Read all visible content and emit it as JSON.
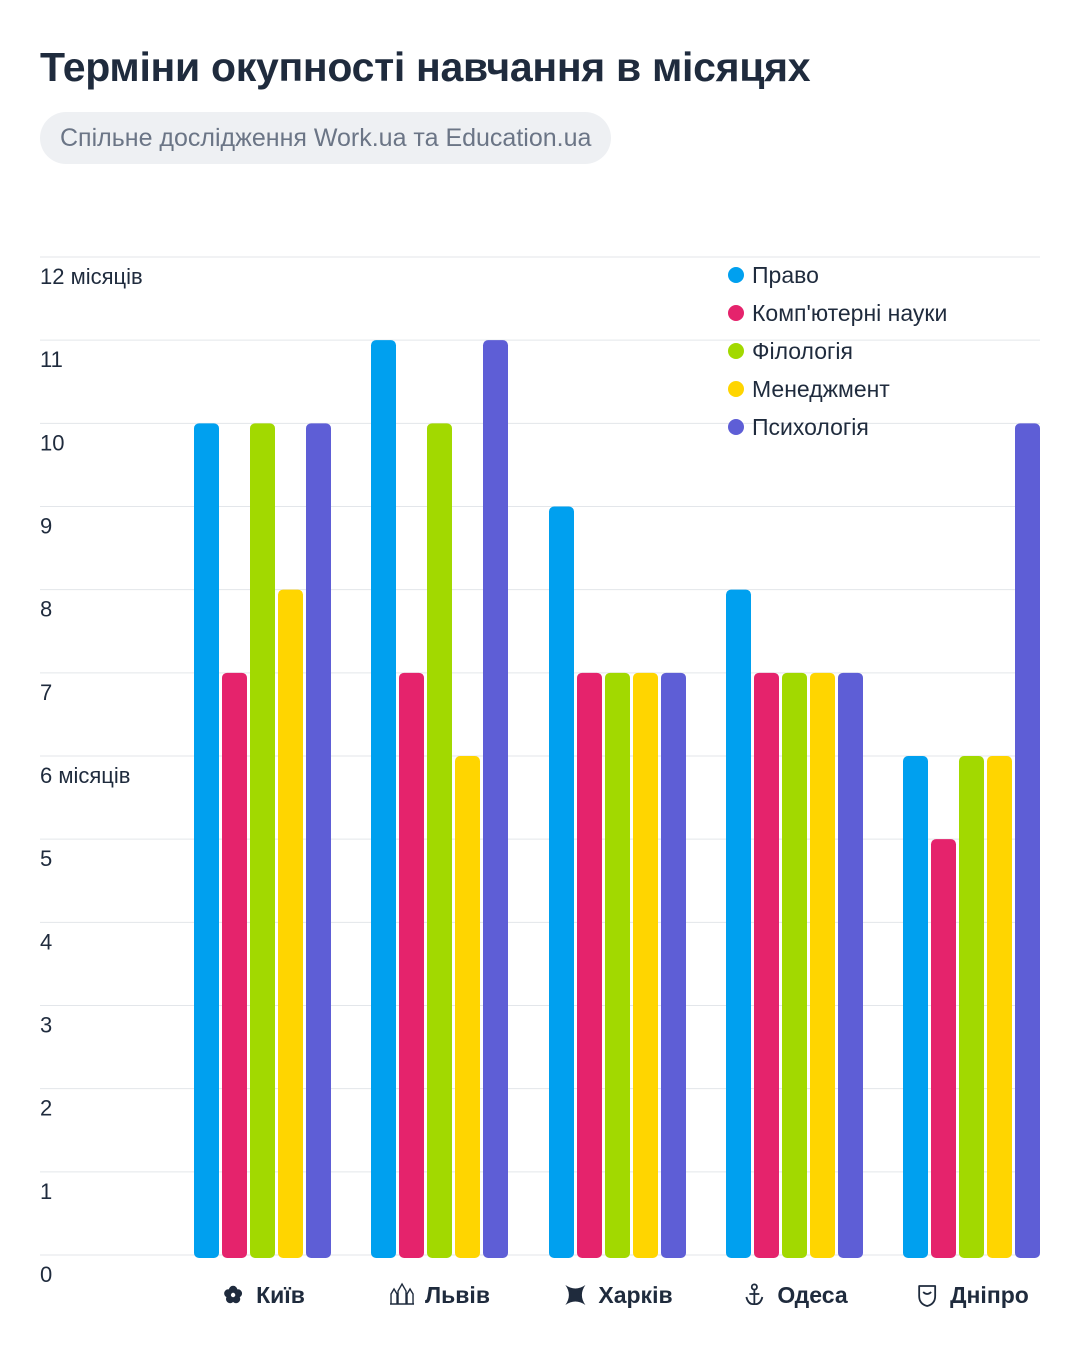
{
  "header": {
    "title": "Терміни окупності навчання в місяцях",
    "subtitle": "Спільне дослідження Work.ua та Education.ua"
  },
  "chart_data": {
    "type": "bar",
    "title": "Терміни окупності навчання в місяцях",
    "subtitle": "Спільне дослідження Work.ua та Education.ua",
    "categories": [
      "Київ",
      "Львів",
      "Харків",
      "Одеса",
      "Дніпро"
    ],
    "category_icons": [
      "kyiv-icon",
      "lviv-icon",
      "kharkiv-icon",
      "odesa-icon",
      "dnipro-icon"
    ],
    "y_tick_labels": [
      "0",
      "1",
      "2",
      "3",
      "4",
      "5",
      "6 місяців",
      "7",
      "8",
      "9",
      "10",
      "11",
      "12 місяців"
    ],
    "ylim": [
      0,
      12
    ],
    "grid": true,
    "legend_position": "top-right",
    "series": [
      {
        "name": "Право",
        "color": "#00a0ef",
        "values": [
          10,
          11,
          9,
          8,
          6
        ]
      },
      {
        "name": "Комп'ютерні науки",
        "color": "#e5236c",
        "values": [
          7,
          7,
          7,
          7,
          5
        ]
      },
      {
        "name": "Філологія",
        "color": "#a2d900",
        "values": [
          10,
          10,
          7,
          7,
          6
        ]
      },
      {
        "name": "Менеджмент",
        "color": "#ffd500",
        "values": [
          8,
          6,
          7,
          7,
          6
        ]
      },
      {
        "name": "Психологія",
        "color": "#5e5ed6",
        "values": [
          10,
          11,
          7,
          7,
          10
        ]
      }
    ]
  }
}
